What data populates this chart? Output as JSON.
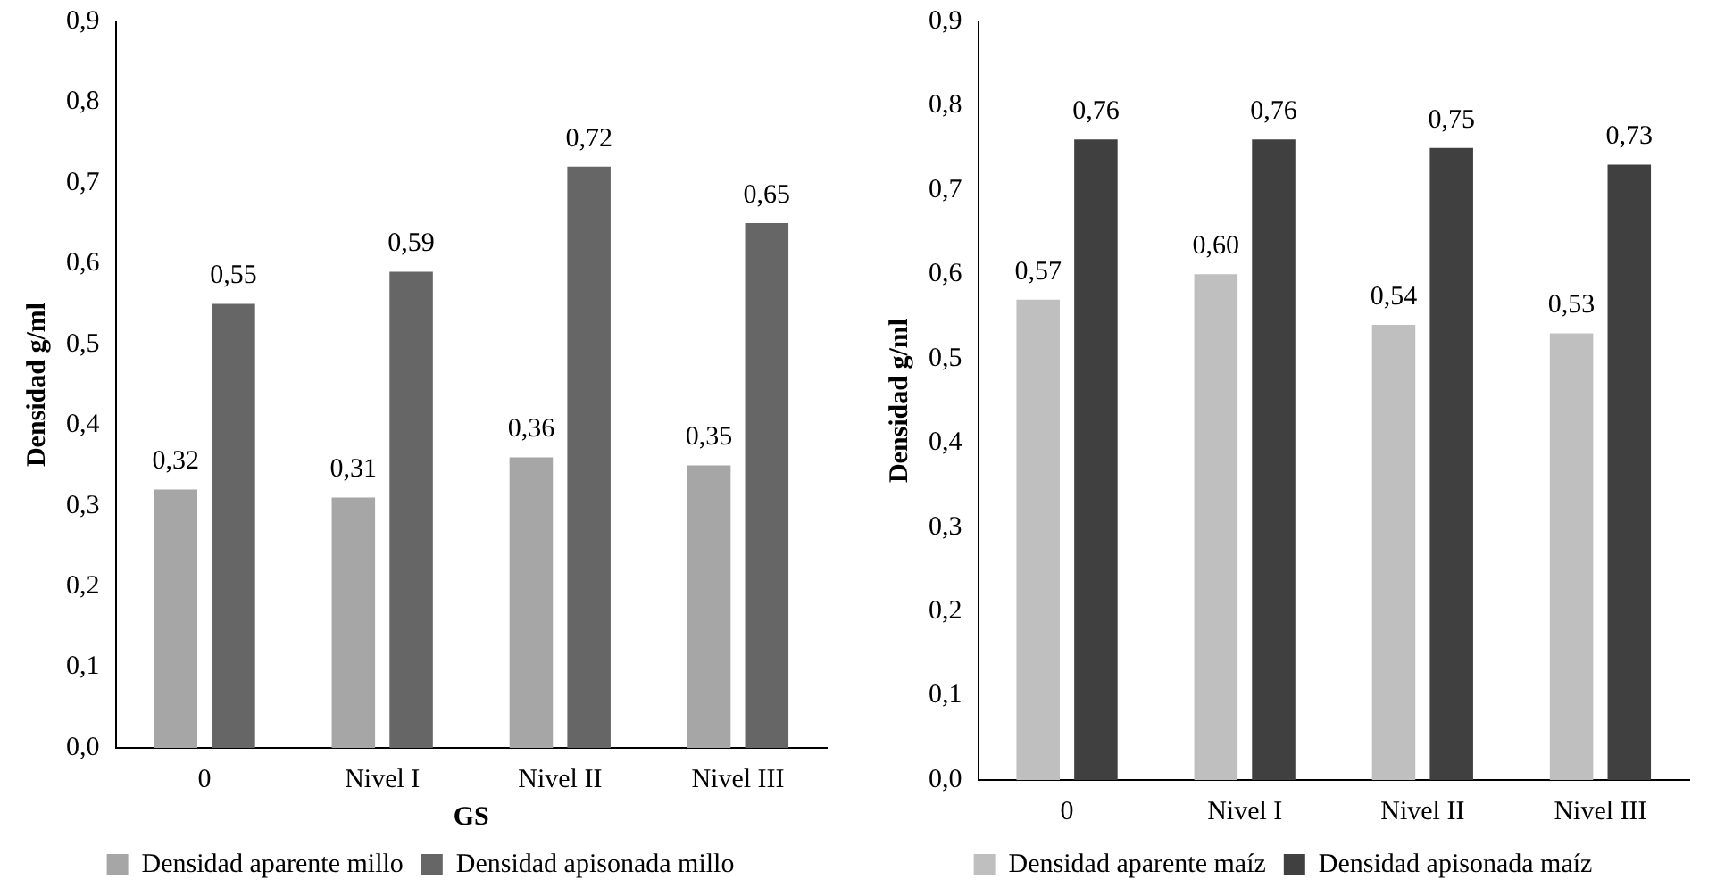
{
  "chart_data": [
    {
      "type": "bar",
      "xlabel": "GS",
      "ylabel": "Densidad g/ml",
      "categories": [
        "0",
        "Nivel I",
        "Nivel II",
        "Nivel III"
      ],
      "series": [
        {
          "name": "Densidad aparente millo",
          "color": "#a6a6a6",
          "values": [
            0.32,
            0.31,
            0.36,
            0.35
          ],
          "value_labels": [
            "0,32",
            "0,31",
            "0,36",
            "0,35"
          ]
        },
        {
          "name": "Densidad apisonada millo",
          "color": "#666666",
          "values": [
            0.55,
            0.59,
            0.72,
            0.65
          ],
          "value_labels": [
            "0,55",
            "0,59",
            "0,72",
            "0,65"
          ]
        }
      ],
      "ylim": [
        0,
        0.9
      ],
      "yticks": [
        {
          "value": 0,
          "label": "0,0"
        },
        {
          "value": 0.1,
          "label": "0,1"
        },
        {
          "value": 0.2,
          "label": "0,2"
        },
        {
          "value": 0.3,
          "label": "0,3"
        },
        {
          "value": 0.4,
          "label": "0,4"
        },
        {
          "value": 0.5,
          "label": "0,5"
        },
        {
          "value": 0.6,
          "label": "0,6"
        },
        {
          "value": 0.7,
          "label": "0,7"
        },
        {
          "value": 0.8,
          "label": "0,8"
        },
        {
          "value": 0.9,
          "label": "0,9"
        }
      ],
      "grid": false,
      "legend": "bottom"
    },
    {
      "type": "bar",
      "ylabel": "Densidad g/ml",
      "categories": [
        "0",
        "Nivel I",
        "Nivel II",
        "Nivel III"
      ],
      "series": [
        {
          "name": "Densidad aparente maíz",
          "color": "#bfbfbf",
          "values": [
            0.57,
            0.6,
            0.54,
            0.53
          ],
          "value_labels": [
            "0,57",
            "0,60",
            "0,54",
            "0,53"
          ]
        },
        {
          "name": "Densidad apisonada maíz",
          "color": "#404040",
          "values": [
            0.76,
            0.76,
            0.75,
            0.73
          ],
          "value_labels": [
            "0,76",
            "0,76",
            "0,75",
            "0,73"
          ]
        }
      ],
      "ylim": [
        0,
        0.9
      ],
      "yticks": [
        {
          "value": 0,
          "label": "0,0"
        },
        {
          "value": 0.1,
          "label": "0,1"
        },
        {
          "value": 0.2,
          "label": "0,2"
        },
        {
          "value": 0.3,
          "label": "0,3"
        },
        {
          "value": 0.4,
          "label": "0,4"
        },
        {
          "value": 0.5,
          "label": "0,5"
        },
        {
          "value": 0.6,
          "label": "0,6"
        },
        {
          "value": 0.7,
          "label": "0,7"
        },
        {
          "value": 0.8,
          "label": "0,8"
        },
        {
          "value": 0.9,
          "label": "0,9"
        }
      ],
      "grid": false,
      "legend": "bottom"
    }
  ]
}
